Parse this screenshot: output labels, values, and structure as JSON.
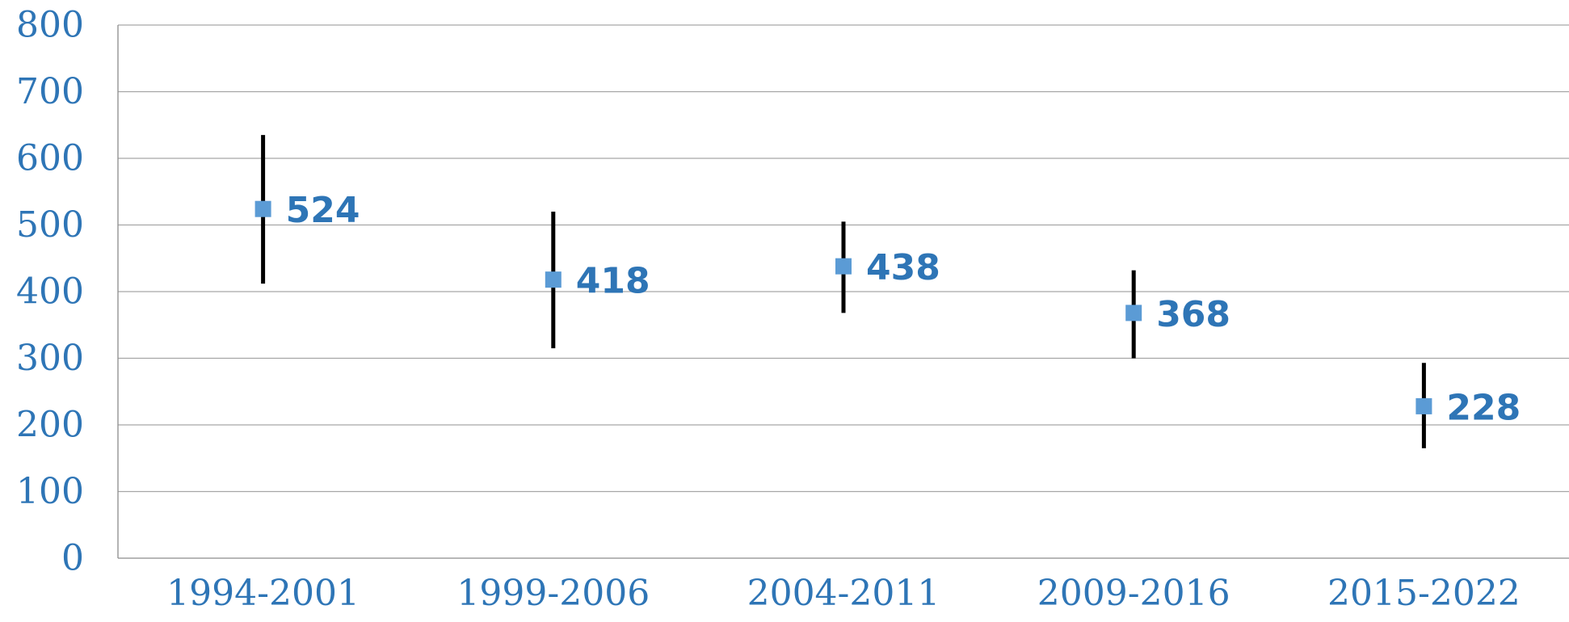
{
  "chart_data": {
    "type": "scatter",
    "categories": [
      "1994-2001",
      "1999-2006",
      "2004-2011",
      "2009-2016",
      "2015-2022"
    ],
    "values": [
      524,
      418,
      438,
      368,
      228
    ],
    "error_low": [
      412,
      315,
      368,
      300,
      165
    ],
    "error_high": [
      635,
      520,
      505,
      432,
      293
    ],
    "data_labels": [
      "524",
      "418",
      "438",
      "368",
      "228"
    ],
    "y_ticks": [
      0,
      100,
      200,
      300,
      400,
      500,
      600,
      700,
      800
    ],
    "y_tick_labels": [
      "0",
      "100",
      "200",
      "300",
      "400",
      "500",
      "600",
      "700",
      "800"
    ],
    "ylim": [
      0,
      800
    ],
    "grid": true,
    "legend": "none",
    "marker_color": "#5b9bd5",
    "label_color": "#2e75b6",
    "error_bar_color": "#000000"
  }
}
